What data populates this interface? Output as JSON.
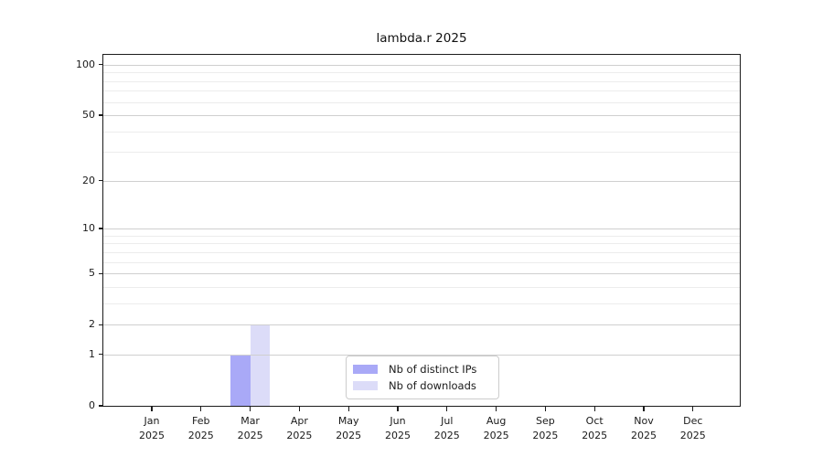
{
  "chart_data": {
    "type": "bar",
    "title": "lambda.r 2025",
    "x": [
      "Jan",
      "Feb",
      "Mar",
      "Apr",
      "May",
      "Jun",
      "Jul",
      "Aug",
      "Sep",
      "Oct",
      "Nov",
      "Dec"
    ],
    "x_year": "2025",
    "series": [
      {
        "name": "Nb of distinct IPs",
        "color": "#a9a9f7",
        "values": [
          0,
          0,
          1,
          0,
          0,
          0,
          0,
          0,
          0,
          0,
          0,
          0
        ]
      },
      {
        "name": "Nb of downloads",
        "color": "#dcdcf8",
        "values": [
          0,
          0,
          2,
          0,
          0,
          0,
          0,
          0,
          0,
          0,
          0,
          0
        ]
      }
    ],
    "y_axis": {
      "scale": "log10(value+1)",
      "major_ticks": [
        0,
        1,
        2,
        5,
        10,
        20,
        50,
        100
      ],
      "minor_gridlines": [
        3,
        4,
        6,
        7,
        8,
        9,
        30,
        40,
        60,
        70,
        80,
        90
      ],
      "ylim": [
        0,
        107
      ]
    },
    "grid": "on",
    "legend_position": "lower center"
  },
  "colors": {
    "distinct_ips_bar": "#a9a9f7",
    "downloads_bar": "#dcdcf8",
    "major_gridline": "#cfcfcf",
    "minor_gridline": "#ececec",
    "axis_spine": "#1c1c1c",
    "legend_border": "#cccccc",
    "background": "#ffffff"
  }
}
